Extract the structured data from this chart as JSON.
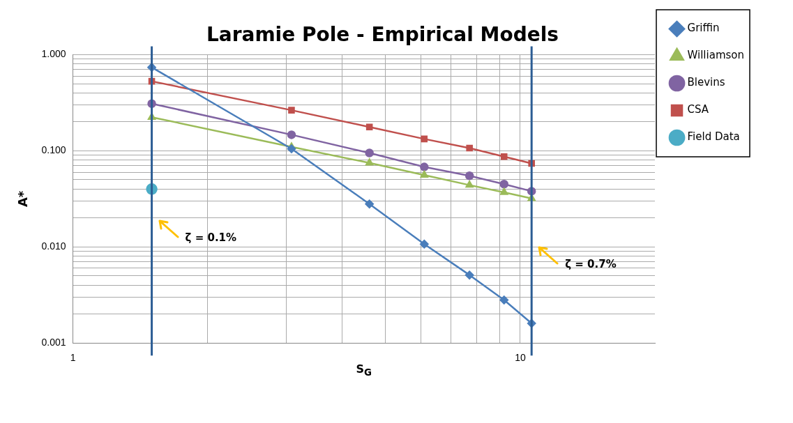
{
  "chart_data": {
    "type": "line",
    "title": "Laramie Pole - Empirical Models",
    "xlabel": "S$_{G}$",
    "ylabel": "A*",
    "log": "xy",
    "grid": true,
    "legend": "right",
    "line_style": "solid",
    "xlim": [
      1,
      20
    ],
    "xticks": [
      1,
      {
        "value": 2,
        "label": null
      },
      {
        "value": 3,
        "label": null
      },
      {
        "value": 4,
        "label": null
      },
      {
        "value": 5,
        "label": null
      },
      {
        "value": 6,
        "label": null
      },
      {
        "value": 7,
        "label": null
      },
      {
        "value": 8,
        "label": null
      },
      {
        "value": 9,
        "label": null
      },
      10
    ],
    "ylim": [
      0.001,
      1
    ],
    "yticks": [
      {
        "value": 0.001,
        "label": "0.001"
      },
      {
        "value": 0.002,
        "label": null
      },
      {
        "value": 0.003,
        "label": null
      },
      {
        "value": 0.004,
        "label": null
      },
      {
        "value": 0.005,
        "label": null
      },
      {
        "value": 0.006,
        "label": null
      },
      {
        "value": 0.007,
        "label": null
      },
      {
        "value": 0.008,
        "label": null
      },
      {
        "value": 0.009,
        "label": null
      },
      {
        "value": 0.01,
        "label": "0.010"
      },
      {
        "value": 0.02,
        "label": null
      },
      {
        "value": 0.03,
        "label": null
      },
      {
        "value": 0.04,
        "label": null
      },
      {
        "value": 0.05,
        "label": null
      },
      {
        "value": 0.06,
        "label": null
      },
      {
        "value": 0.07,
        "label": null
      },
      {
        "value": 0.08,
        "label": null
      },
      {
        "value": 0.09,
        "label": null
      },
      {
        "value": 0.1,
        "label": "0.100"
      },
      {
        "value": 0.2,
        "label": null
      },
      {
        "value": 0.3,
        "label": null
      },
      {
        "value": 0.4,
        "label": null
      },
      {
        "value": 0.5,
        "label": null
      },
      {
        "value": 0.6,
        "label": null
      },
      {
        "value": 0.7,
        "label": null
      },
      {
        "value": 0.8,
        "label": null
      },
      {
        "value": 0.9,
        "label": null
      },
      {
        "value": 1,
        "label": "1.000"
      }
    ],
    "x": [
      1.5,
      3.08,
      4.6,
      6.1,
      7.7,
      9.2,
      10.6
    ],
    "series": [
      {
        "name": "Griffin",
        "color": "#4a7ebb",
        "marker": "diamond",
        "values": [
          0.74,
          0.105,
          0.028,
          0.0107,
          0.0051,
          0.0028,
          0.0016
        ]
      },
      {
        "name": "Williamson",
        "color": "#9bbb59",
        "marker": "triangle",
        "values": [
          0.224,
          0.11,
          0.075,
          0.056,
          0.044,
          0.037,
          0.032
        ]
      },
      {
        "name": "Blevins",
        "color": "#8064a2",
        "marker": "circle",
        "values": [
          0.31,
          0.147,
          0.095,
          0.068,
          0.055,
          0.045,
          0.038
        ]
      },
      {
        "name": "CSA",
        "color": "#c0504d",
        "marker": "square",
        "values": [
          0.53,
          0.265,
          0.177,
          0.133,
          0.107,
          0.087,
          0.074
        ]
      },
      {
        "name": "Field Data",
        "type": "scatter",
        "color": "#4bacc6",
        "marker": "circle",
        "x": [
          1.5
        ],
        "values": [
          0.04
        ]
      }
    ],
    "ref_lines": [
      {
        "axis": "x",
        "value": 1.5,
        "color": "#2c5d94"
      },
      {
        "axis": "x",
        "value": 10.6,
        "color": "#2c5d94"
      }
    ],
    "annotations": [
      "ζ = 0.1%",
      "ζ = 0.7%"
    ]
  }
}
